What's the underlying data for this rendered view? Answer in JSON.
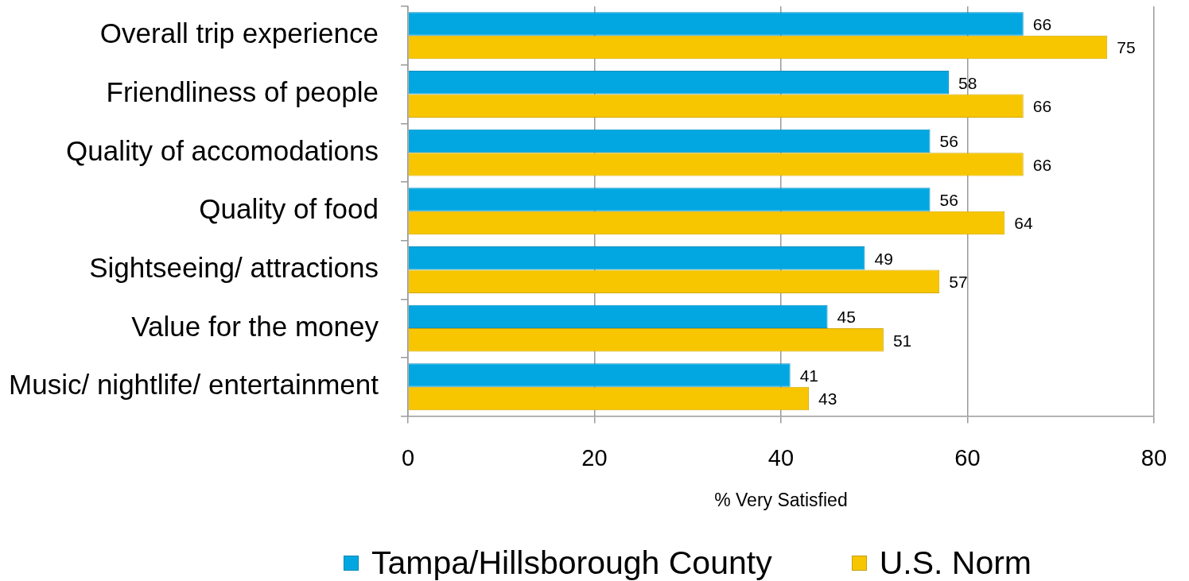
{
  "chart_data": {
    "type": "bar",
    "orientation": "horizontal",
    "categories": [
      "Overall trip experience",
      "Friendliness of people",
      "Quality of accomodations",
      "Quality of food",
      "Sightseeing/ attractions",
      "Value for the money",
      "Music/ nightlife/ entertainment"
    ],
    "series": [
      {
        "name": "Tampa/Hillsborough County",
        "color": "#02a7e1",
        "values": [
          66,
          58,
          56,
          56,
          49,
          45,
          41
        ]
      },
      {
        "name": "U.S. Norm",
        "color": "#f7c600",
        "values": [
          75,
          66,
          66,
          64,
          57,
          51,
          43
        ]
      }
    ],
    "xlabel": "% Very Satisfied",
    "xlim": [
      0,
      80
    ],
    "xticks": [
      0,
      20,
      40,
      60,
      80
    ],
    "grid": "x",
    "legend": "bottom",
    "data_labels": true
  }
}
